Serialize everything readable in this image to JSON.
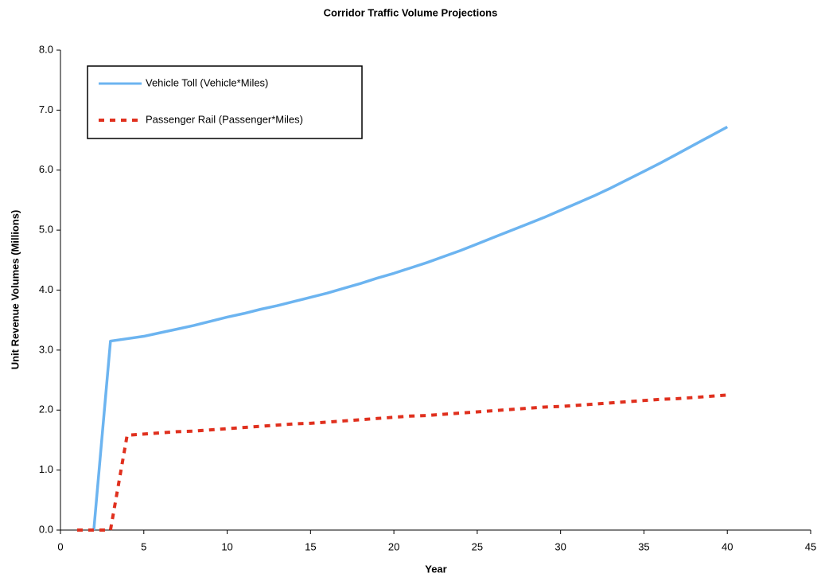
{
  "chart_data": {
    "type": "line",
    "title": "Corridor Traffic Volume Projections",
    "x_label": "Year",
    "y_label": "Unit Revenue Volumes (Millions)",
    "x": [
      1,
      2,
      3,
      4,
      5,
      6,
      7,
      8,
      9,
      10,
      11,
      12,
      13,
      14,
      15,
      16,
      17,
      18,
      19,
      20,
      21,
      22,
      23,
      24,
      25,
      26,
      27,
      28,
      29,
      30,
      31,
      32,
      33,
      34,
      35,
      36,
      37,
      38,
      39,
      40
    ],
    "series": [
      {
        "name": "Vehicle Toll (Vehicle*Miles)",
        "color": "#6cb4f0",
        "dash": false,
        "values": [
          null,
          0,
          3.15,
          3.19,
          3.23,
          3.29,
          3.35,
          3.41,
          3.48,
          3.55,
          3.61,
          3.68,
          3.74,
          3.81,
          3.88,
          3.95,
          4.03,
          4.11,
          4.2,
          4.28,
          4.37,
          4.46,
          4.56,
          4.66,
          4.77,
          4.88,
          4.99,
          5.1,
          5.21,
          5.33,
          5.45,
          5.57,
          5.7,
          5.84,
          5.98,
          6.12,
          6.27,
          6.42,
          6.57,
          6.72
        ]
      },
      {
        "name": "Passenger Rail (Passenger*Miles)",
        "color": "#e0301e",
        "dash": true,
        "values": [
          0,
          0,
          0,
          1.58,
          1.6,
          1.62,
          1.64,
          1.65,
          1.67,
          1.69,
          1.71,
          1.73,
          1.75,
          1.77,
          1.78,
          1.8,
          1.82,
          1.84,
          1.86,
          1.88,
          1.9,
          1.91,
          1.93,
          1.95,
          1.97,
          1.99,
          2.01,
          2.03,
          2.05,
          2.06,
          2.08,
          2.1,
          2.12,
          2.14,
          2.16,
          2.18,
          2.19,
          2.21,
          2.23,
          2.25
        ]
      }
    ],
    "xlim": [
      0,
      45
    ],
    "xticks": [
      0,
      5,
      10,
      15,
      20,
      25,
      30,
      35,
      40,
      45
    ],
    "ylim": [
      0,
      8
    ],
    "yticks": [
      {
        "value": 0,
        "label": "0.0"
      },
      {
        "value": 1,
        "label": "1.0"
      },
      {
        "value": 2,
        "label": "2.0"
      },
      {
        "value": 3,
        "label": "3.0"
      },
      {
        "value": 4,
        "label": "4.0"
      },
      {
        "value": 5,
        "label": "5.0"
      },
      {
        "value": 6,
        "label": "6.0"
      },
      {
        "value": 7,
        "label": "7.0"
      },
      {
        "value": 8,
        "label": "8.0"
      }
    ],
    "grid": false,
    "legend": "upper left"
  }
}
